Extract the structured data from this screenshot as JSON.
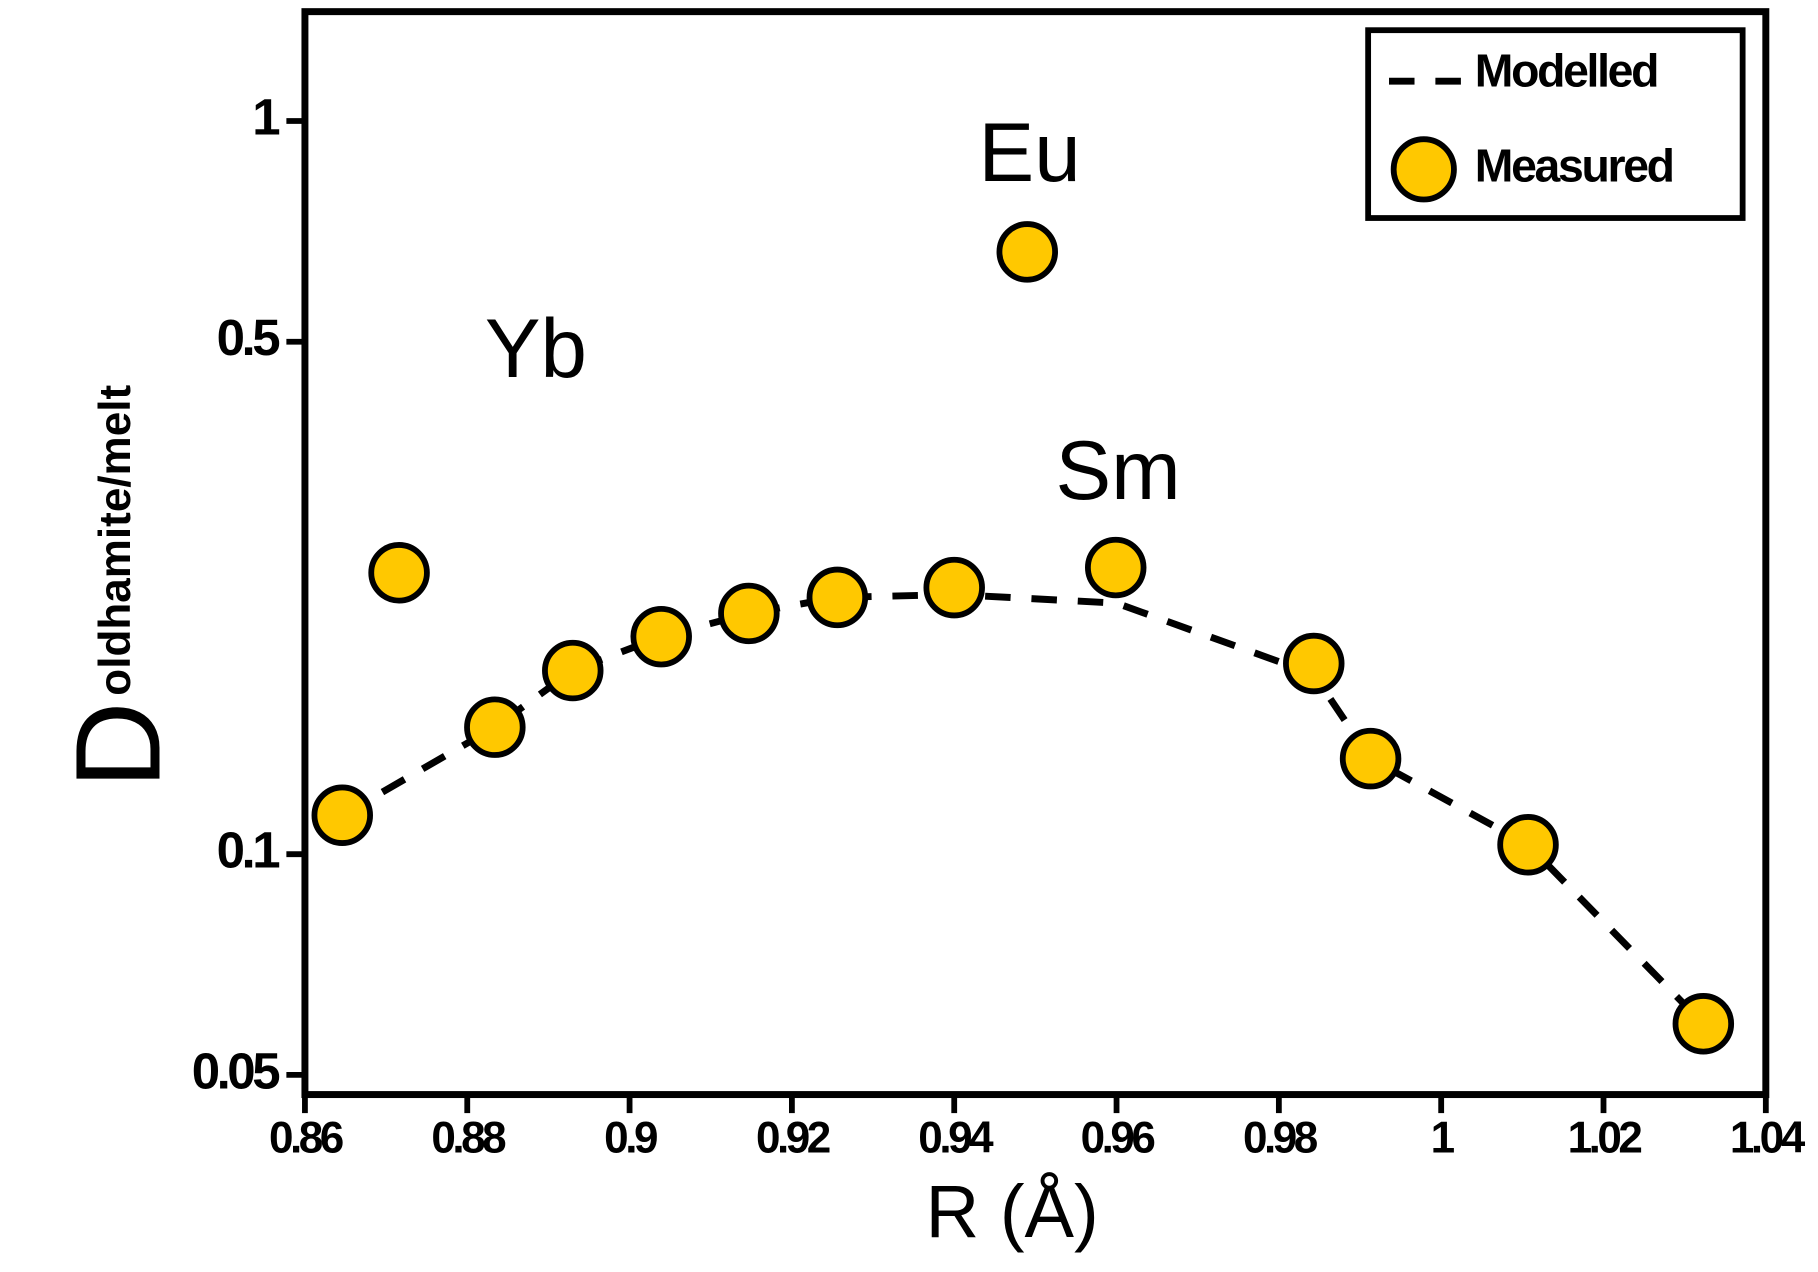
{
  "chart_data": {
    "type": "scatter",
    "x_label": "R (Å)",
    "y_label": "D",
    "y_label_subscript": "oldhamite/melt",
    "xlim": [
      0.86,
      1.04
    ],
    "xticks": [
      0.86,
      0.88,
      0.9,
      0.92,
      0.94,
      0.96,
      0.98,
      1,
      1.02,
      1.04
    ],
    "ylim": [
      0.047,
      1.41
    ],
    "yticks": [
      0.05,
      0.1,
      0.5,
      1
    ],
    "log_y": true,
    "grid": false,
    "legend": "upper right",
    "annotations": [
      "Yb",
      "Eu",
      "Sm"
    ],
    "series": [
      {
        "name": "Modelled",
        "color": "#000000",
        "style": "dashed",
        "x": [
          0.8646,
          0.8834,
          0.893,
          0.9039,
          0.9147,
          0.9256,
          0.94,
          0.96,
          0.9843,
          0.9913,
          1.0107,
          1.0323
        ],
        "values": [
          0.113,
          0.149,
          0.178,
          0.198,
          0.213,
          0.224,
          0.226,
          0.22,
          0.176,
          0.135,
          0.103,
          0.0587
        ]
      },
      {
        "name": "Measured",
        "color": "#ffc800",
        "style": "marker",
        "x": [
          0.8646,
          0.8716,
          0.8834,
          0.893,
          0.9039,
          0.9147,
          0.9256,
          0.94,
          0.949,
          0.9599,
          0.9843,
          0.9913,
          1.0107,
          1.0323
        ],
        "values": [
          0.113,
          0.242,
          0.149,
          0.178,
          0.198,
          0.213,
          0.224,
          0.231,
          0.663,
          0.246,
          0.182,
          0.135,
          0.103,
          0.0587
        ]
      }
    ]
  }
}
